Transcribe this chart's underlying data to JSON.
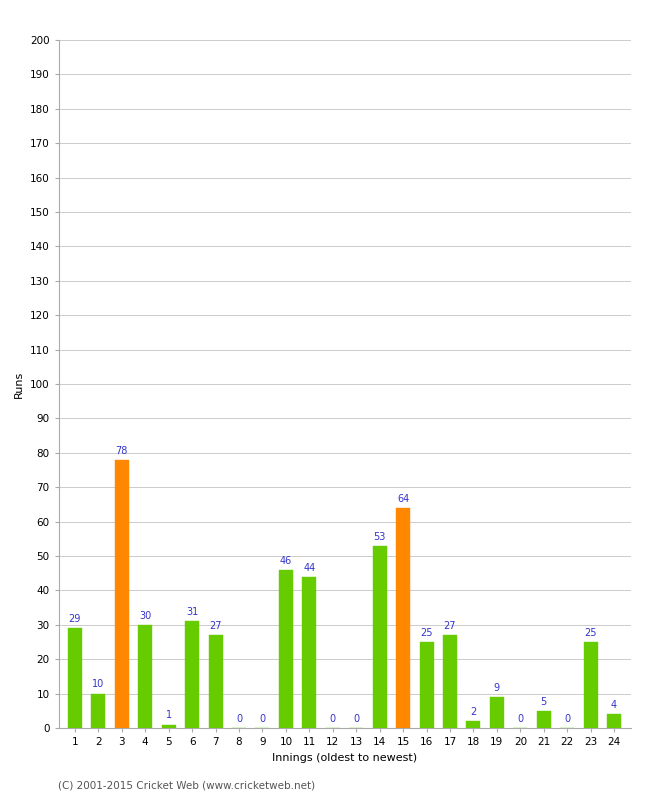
{
  "innings": [
    1,
    2,
    3,
    4,
    5,
    6,
    7,
    8,
    9,
    10,
    11,
    12,
    13,
    14,
    15,
    16,
    17,
    18,
    19,
    20,
    21,
    22,
    23,
    24
  ],
  "values": [
    29,
    10,
    78,
    30,
    1,
    31,
    27,
    0,
    0,
    46,
    44,
    0,
    0,
    53,
    64,
    25,
    27,
    2,
    9,
    0,
    5,
    0,
    25,
    4
  ],
  "colors": [
    "#66cc00",
    "#66cc00",
    "#ff8800",
    "#66cc00",
    "#66cc00",
    "#66cc00",
    "#66cc00",
    "#66cc00",
    "#66cc00",
    "#66cc00",
    "#66cc00",
    "#66cc00",
    "#66cc00",
    "#66cc00",
    "#ff8800",
    "#66cc00",
    "#66cc00",
    "#66cc00",
    "#66cc00",
    "#66cc00",
    "#66cc00",
    "#66cc00",
    "#66cc00",
    "#66cc00"
  ],
  "xlabel": "Innings (oldest to newest)",
  "ylabel": "Runs",
  "ylim": [
    0,
    200
  ],
  "yticks": [
    0,
    10,
    20,
    30,
    40,
    50,
    60,
    70,
    80,
    90,
    100,
    110,
    120,
    130,
    140,
    150,
    160,
    170,
    180,
    190,
    200
  ],
  "label_color": "#3333cc",
  "label_fontsize": 7,
  "axis_label_fontsize": 8,
  "tick_fontsize": 7.5,
  "footer": "(C) 2001-2015 Cricket Web (www.cricketweb.net)",
  "footer_fontsize": 7.5,
  "background_color": "#ffffff",
  "grid_color": "#cccccc",
  "bar_width": 0.6
}
